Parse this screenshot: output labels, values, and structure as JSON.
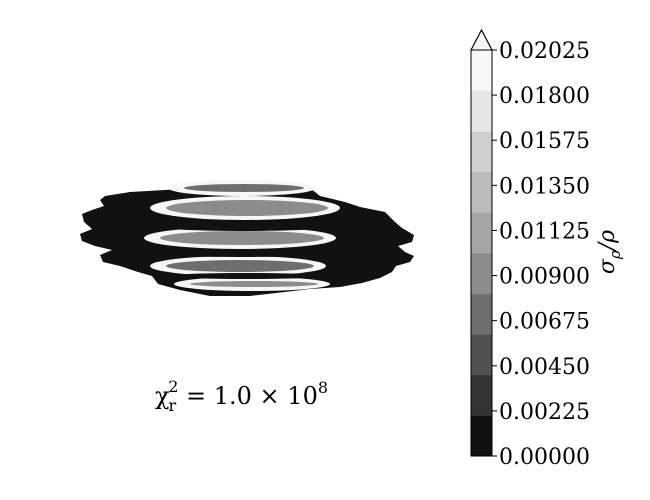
{
  "chart_data": {
    "type": "heatmap",
    "title": "",
    "annotation": {
      "prefix": "χ",
      "sub": "r",
      "sup": "2",
      "middle": " = 1.0 × 10",
      "exp": "8"
    },
    "colorbar": {
      "label_main": "σ",
      "label_sub": "ρ",
      "label_rest": "/ρ",
      "extend": "max",
      "ticks": [
        0.0,
        0.00225,
        0.0045,
        0.00675,
        0.009,
        0.01125,
        0.0135,
        0.01575,
        0.018,
        0.02025
      ],
      "tick_labels": [
        "0.00000",
        "0.00225",
        "0.00450",
        "0.00675",
        "0.00900",
        "0.01125",
        "0.01350",
        "0.01575",
        "0.01800",
        "0.02025"
      ],
      "level_colors": [
        "#111111",
        "#333333",
        "#505050",
        "#6e6e6e",
        "#8c8c8c",
        "#a5a5a5",
        "#bbbbbb",
        "#d0d0d0",
        "#e6e6e6",
        "#f7f7f7"
      ]
    },
    "disk": {
      "outer_value": 0.0015,
      "ring_values": [
        0.0085,
        0.0095,
        0.009,
        0.0085,
        0.0095
      ],
      "edge_value": 0.02025
    }
  }
}
